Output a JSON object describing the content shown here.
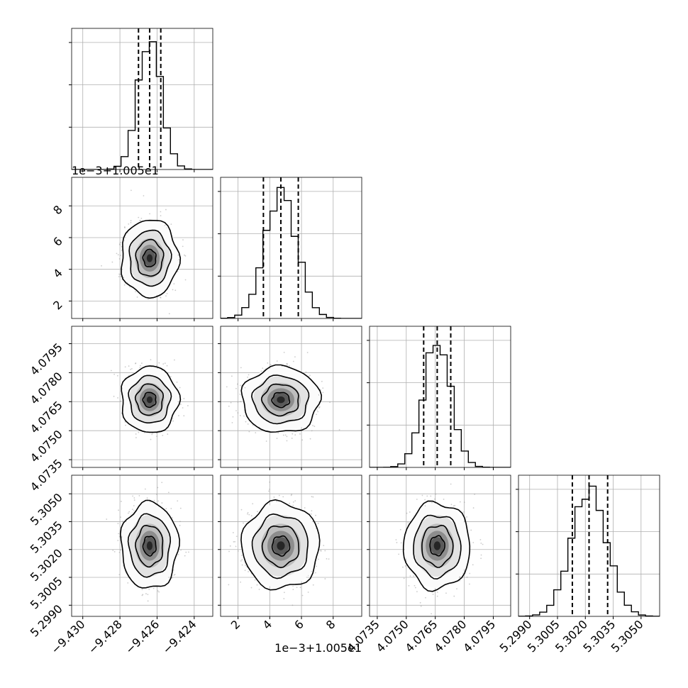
{
  "chart_data": {
    "type": "corner",
    "grid": true,
    "n_parameters": 4,
    "parameters": [
      {
        "range": [
          -9.4306,
          -9.423
        ],
        "ticks": [
          -9.43,
          -9.428,
          -9.426,
          -9.424
        ],
        "tick_labels": [
          "−9.430",
          "−9.428",
          "−9.426",
          "−9.424"
        ],
        "offset_text": "",
        "quantiles": [
          -9.427,
          -9.4264,
          -9.4258
        ],
        "mean": -9.4264,
        "sd": 0.00063,
        "hist_peak_fraction": 0.93
      },
      {
        "range": [
          0.9,
          9.8
        ],
        "ticks": [
          2,
          4,
          6,
          8
        ],
        "tick_labels": [
          "2",
          "4",
          "6",
          "8"
        ],
        "offset_text": "1e−3+1.005e1",
        "quantiles": [
          3.6,
          4.7,
          5.8
        ],
        "mean": 4.7,
        "sd": 1.0,
        "hist_peak_fraction": 0.9
      },
      {
        "range": [
          4.0731,
          4.0804
        ],
        "ticks": [
          4.0735,
          4.075,
          4.0765,
          4.078,
          4.0795
        ],
        "tick_labels": [
          "4.0735",
          "4.0750",
          "4.0765",
          "4.0780",
          "4.0795"
        ],
        "offset_text": "",
        "quantiles": [
          4.0759,
          4.0766,
          4.0773
        ],
        "mean": 4.0766,
        "sd": 0.0007,
        "hist_peak_fraction": 0.9
      },
      {
        "range": [
          5.2984,
          5.306
        ],
        "ticks": [
          5.299,
          5.3005,
          5.302,
          5.3035,
          5.305
        ],
        "tick_labels": [
          "5.2990",
          "5.3005",
          "5.3020",
          "5.3035",
          "5.3050"
        ],
        "offset_text": "",
        "quantiles": [
          5.3013,
          5.3022,
          5.3032
        ],
        "mean": 5.3022,
        "sd": 0.00095,
        "hist_peak_fraction": 0.9
      }
    ]
  }
}
